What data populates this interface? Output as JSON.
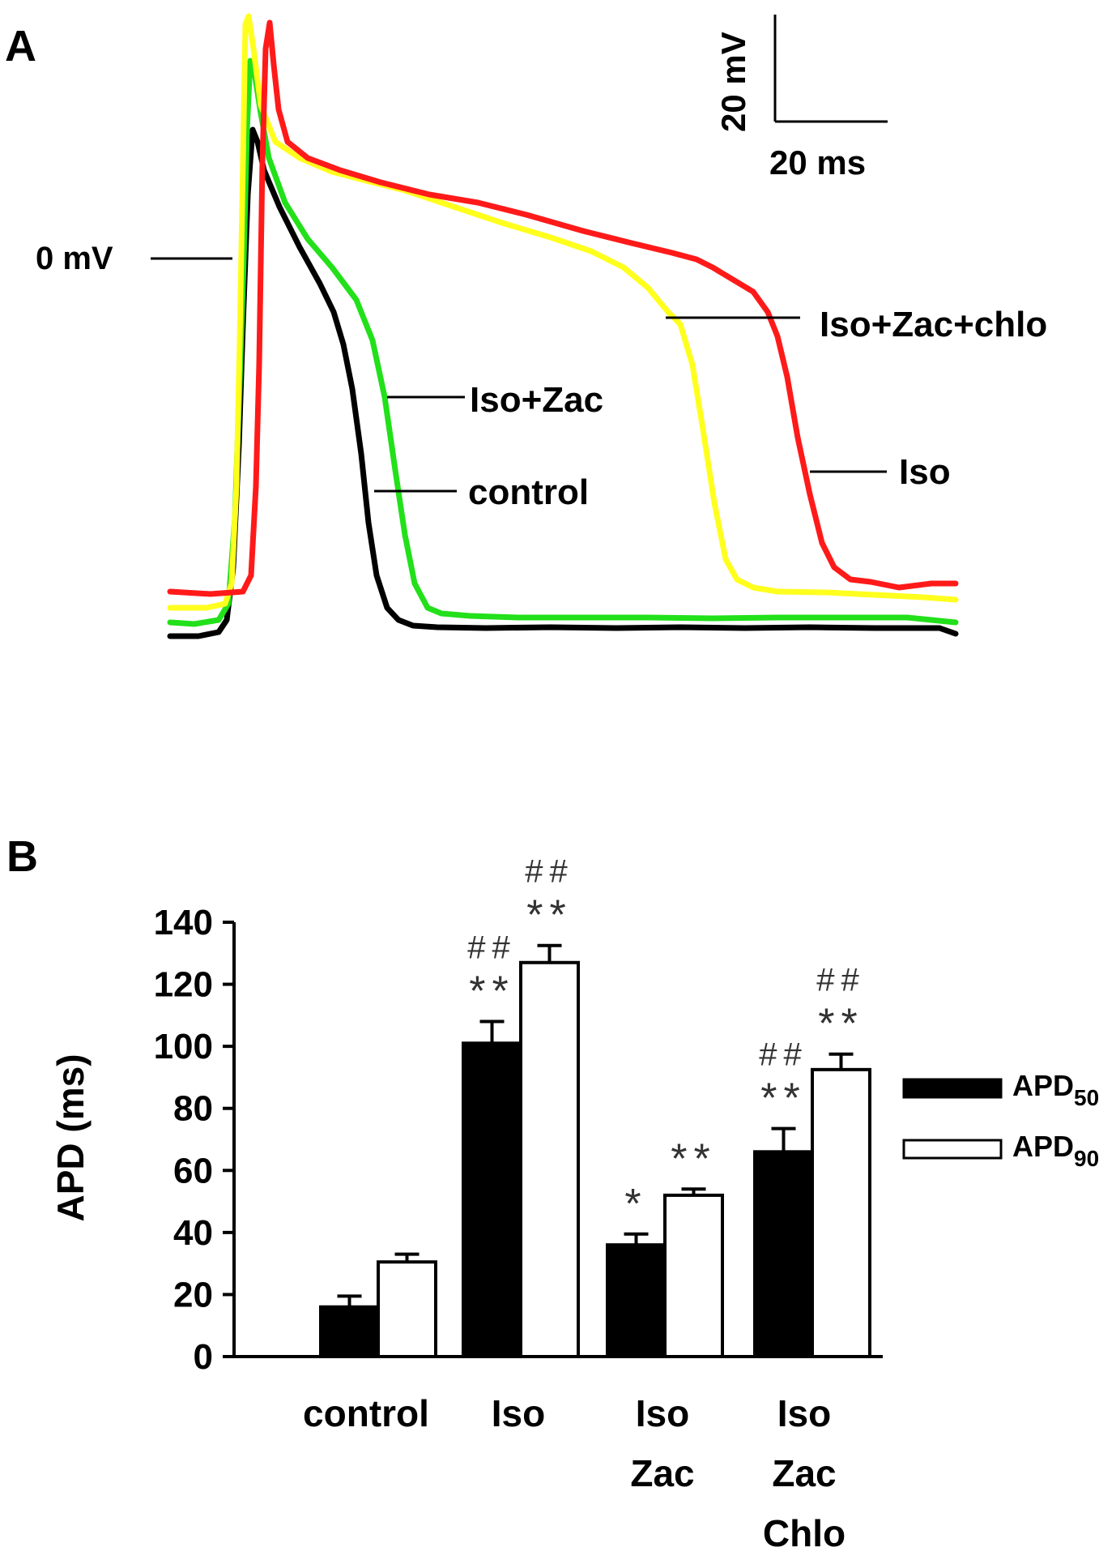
{
  "panel_a": {
    "label": "A",
    "scale_bar": {
      "vertical_label": "20 mV",
      "horizontal_label": "20 ms"
    },
    "zero_label": "0 mV",
    "traces": [
      {
        "name": "control",
        "color": "#000000",
        "label": "control"
      },
      {
        "name": "iso_zac",
        "color": "#22e01a",
        "label": "Iso+Zac"
      },
      {
        "name": "iso_zac_chlo",
        "color": "#ffff1e",
        "label": "Iso+Zac+chlo"
      },
      {
        "name": "iso",
        "color": "#ff1a1a",
        "label": "Iso"
      }
    ]
  },
  "panel_b": {
    "label": "B"
  },
  "chart_data": {
    "type": "bar",
    "title": "",
    "xlabel": "",
    "ylabel": "APD (ms)",
    "ylim": [
      0,
      140
    ],
    "yticks": [
      0,
      20,
      40,
      60,
      80,
      100,
      120,
      140
    ],
    "categories": [
      {
        "name": "control",
        "lines": [
          "control"
        ]
      },
      {
        "name": "Iso",
        "lines": [
          "Iso"
        ]
      },
      {
        "name": "Iso Zac",
        "lines": [
          "Iso",
          "Zac"
        ]
      },
      {
        "name": "Iso Zac Chlo",
        "lines": [
          "Iso",
          "Zac",
          "Chlo"
        ]
      }
    ],
    "series": [
      {
        "name": "APD50",
        "legend_main": "APD",
        "legend_sub": "50",
        "fill": "#000000",
        "values": [
          16,
          101,
          36,
          66
        ],
        "errors": [
          3.5,
          7,
          3.5,
          7.5
        ],
        "annotations": [
          [],
          [
            "**",
            "##"
          ],
          [
            "*"
          ],
          [
            "**",
            "##"
          ]
        ]
      },
      {
        "name": "APD90",
        "legend_main": "APD",
        "legend_sub": "90",
        "fill": "#ffffff",
        "values": [
          30.5,
          127,
          52,
          92.5
        ],
        "errors": [
          2.5,
          5.5,
          2,
          5
        ],
        "annotations": [
          [],
          [
            "**",
            "##"
          ],
          [
            "**"
          ],
          [
            "**",
            "##"
          ]
        ]
      }
    ]
  }
}
